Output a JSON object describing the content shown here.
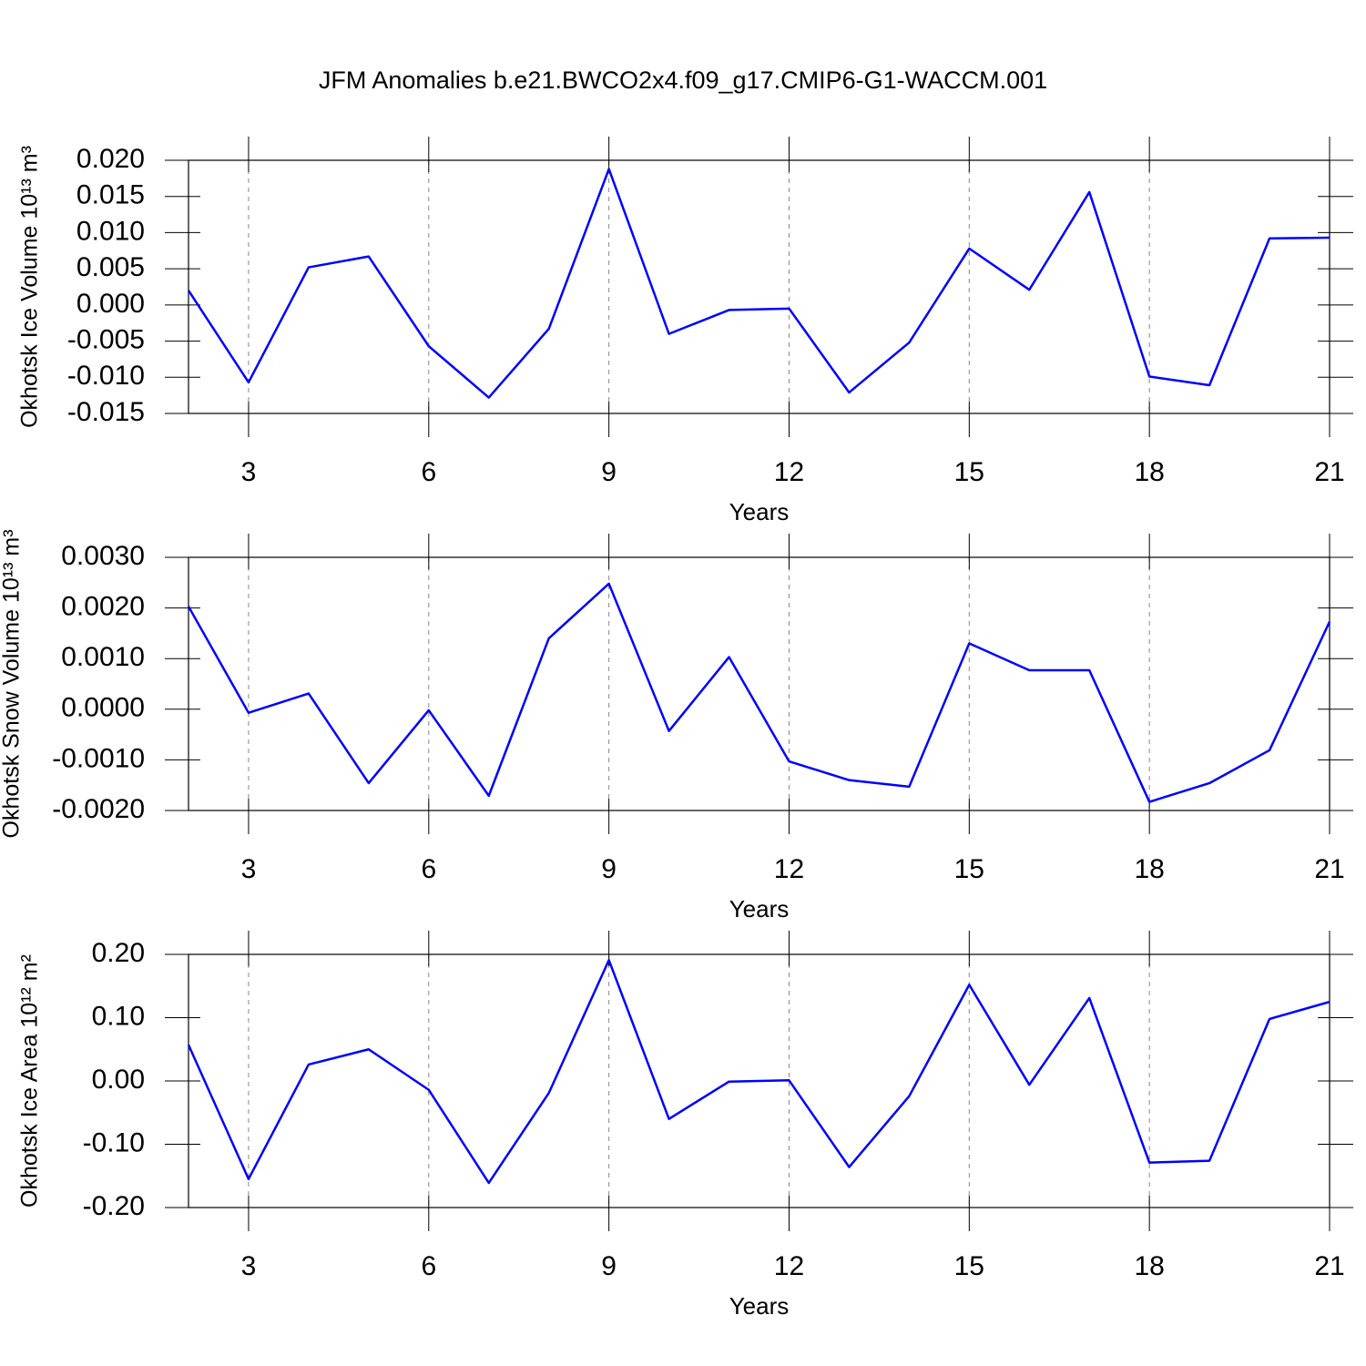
{
  "title": "JFM Anomalies b.e21.BWCO2x4.f09_g17.CMIP6-G1-WACCM.001",
  "chart_data": [
    {
      "type": "line",
      "ylabel": "Okhotsk Ice Volume 10¹³ m³",
      "xlabel": "Years",
      "x": [
        2,
        3,
        4,
        5,
        6,
        7,
        8,
        9,
        10,
        11,
        12,
        13,
        14,
        15,
        16,
        17,
        18,
        19,
        20,
        21
      ],
      "values": [
        0.002,
        -0.0107,
        0.0052,
        0.0067,
        -0.0057,
        -0.0128,
        -0.0033,
        0.0188,
        -0.004,
        -0.0007,
        -0.0005,
        -0.0121,
        -0.0052,
        0.0078,
        0.0021,
        0.0156,
        -0.0099,
        -0.0111,
        0.0092,
        0.0093
      ],
      "color": "#0000ff",
      "xlim": [
        2,
        21
      ],
      "xticks": [
        3,
        6,
        9,
        12,
        15,
        18,
        21
      ],
      "grid": true,
      "ylim": [
        -0.015,
        0.02
      ],
      "yticks": [
        {
          "value": -0.015,
          "label": "-0.015"
        },
        {
          "value": -0.01,
          "label": "-0.010"
        },
        {
          "value": -0.005,
          "label": "-0.005"
        },
        {
          "value": 0,
          "label": "0.000"
        },
        {
          "value": 0.005,
          "label": "0.005"
        },
        {
          "value": 0.01,
          "label": "0.010"
        },
        {
          "value": 0.015,
          "label": "0.015"
        },
        {
          "value": 0.02,
          "label": "0.020"
        }
      ]
    },
    {
      "type": "line",
      "ylabel": "Okhotsk Snow Volume 10¹³ m³",
      "xlabel": "Years",
      "x": [
        2,
        3,
        4,
        5,
        6,
        7,
        8,
        9,
        10,
        11,
        12,
        13,
        14,
        15,
        16,
        17,
        18,
        19,
        20,
        21
      ],
      "values": [
        0.00203,
        -7e-05,
        0.00031,
        -0.00146,
        -2e-05,
        -0.00171,
        0.0014,
        0.00248,
        -0.00043,
        0.00103,
        -0.00103,
        -0.0014,
        -0.00153,
        0.0013,
        0.00077,
        0.00077,
        -0.00183,
        -0.00146,
        -0.00081,
        0.00173
      ],
      "color": "#0000ff",
      "xlim": [
        2,
        21
      ],
      "xticks": [
        3,
        6,
        9,
        12,
        15,
        18,
        21
      ],
      "grid": true,
      "ylim": [
        -0.002,
        0.003
      ],
      "yticks": [
        {
          "value": -0.002,
          "label": "-0.0020"
        },
        {
          "value": -0.001,
          "label": "-0.0010"
        },
        {
          "value": 0,
          "label": "0.0000"
        },
        {
          "value": 0.001,
          "label": "0.0010"
        },
        {
          "value": 0.002,
          "label": "0.0020"
        },
        {
          "value": 0.003,
          "label": "0.0030"
        }
      ]
    },
    {
      "type": "line",
      "ylabel": "Okhotsk Ice Area 10¹² m²",
      "xlabel": "Years",
      "x": [
        2,
        3,
        4,
        5,
        6,
        7,
        8,
        9,
        10,
        11,
        12,
        13,
        14,
        15,
        16,
        17,
        18,
        19,
        20,
        21
      ],
      "values": [
        0.057,
        -0.155,
        0.026,
        0.05,
        -0.014,
        -0.161,
        -0.019,
        0.191,
        -0.06,
        -0.001,
        0.001,
        -0.136,
        -0.024,
        0.152,
        -0.006,
        0.131,
        -0.129,
        -0.126,
        0.098,
        0.125
      ],
      "color": "#0000ff",
      "xlim": [
        2,
        21
      ],
      "xticks": [
        3,
        6,
        9,
        12,
        15,
        18,
        21
      ],
      "grid": true,
      "ylim": [
        -0.2,
        0.2
      ],
      "yticks": [
        {
          "value": -0.2,
          "label": "-0.20"
        },
        {
          "value": -0.1,
          "label": "-0.10"
        },
        {
          "value": 0,
          "label": "0.00"
        },
        {
          "value": 0.1,
          "label": "0.10"
        },
        {
          "value": 0.2,
          "label": "0.20"
        }
      ]
    }
  ]
}
